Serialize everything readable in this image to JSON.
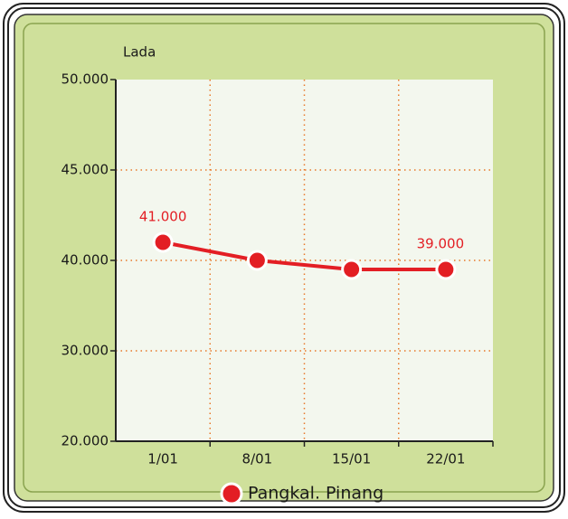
{
  "chart_data": {
    "type": "line",
    "title": "Lada",
    "categories": [
      "1/01",
      "8/01",
      "15/01",
      "22/01"
    ],
    "series": [
      {
        "name": "Pangkal. Pinang",
        "color": "#e31e24",
        "values": [
          41000,
          40000,
          39000,
          39000
        ],
        "value_labels": [
          "41.000",
          null,
          null,
          "39.000"
        ]
      }
    ],
    "ylim": [
      20000,
      50000
    ],
    "yticks": [
      {
        "value": 20000,
        "label": "20.000"
      },
      {
        "value": 30000,
        "label": "30.000"
      },
      {
        "value": 40000,
        "label": "40.000"
      },
      {
        "value": 45000,
        "label": "45.000"
      },
      {
        "value": 50000,
        "label": "50.000"
      }
    ],
    "grid": true,
    "legend": "bottom"
  }
}
